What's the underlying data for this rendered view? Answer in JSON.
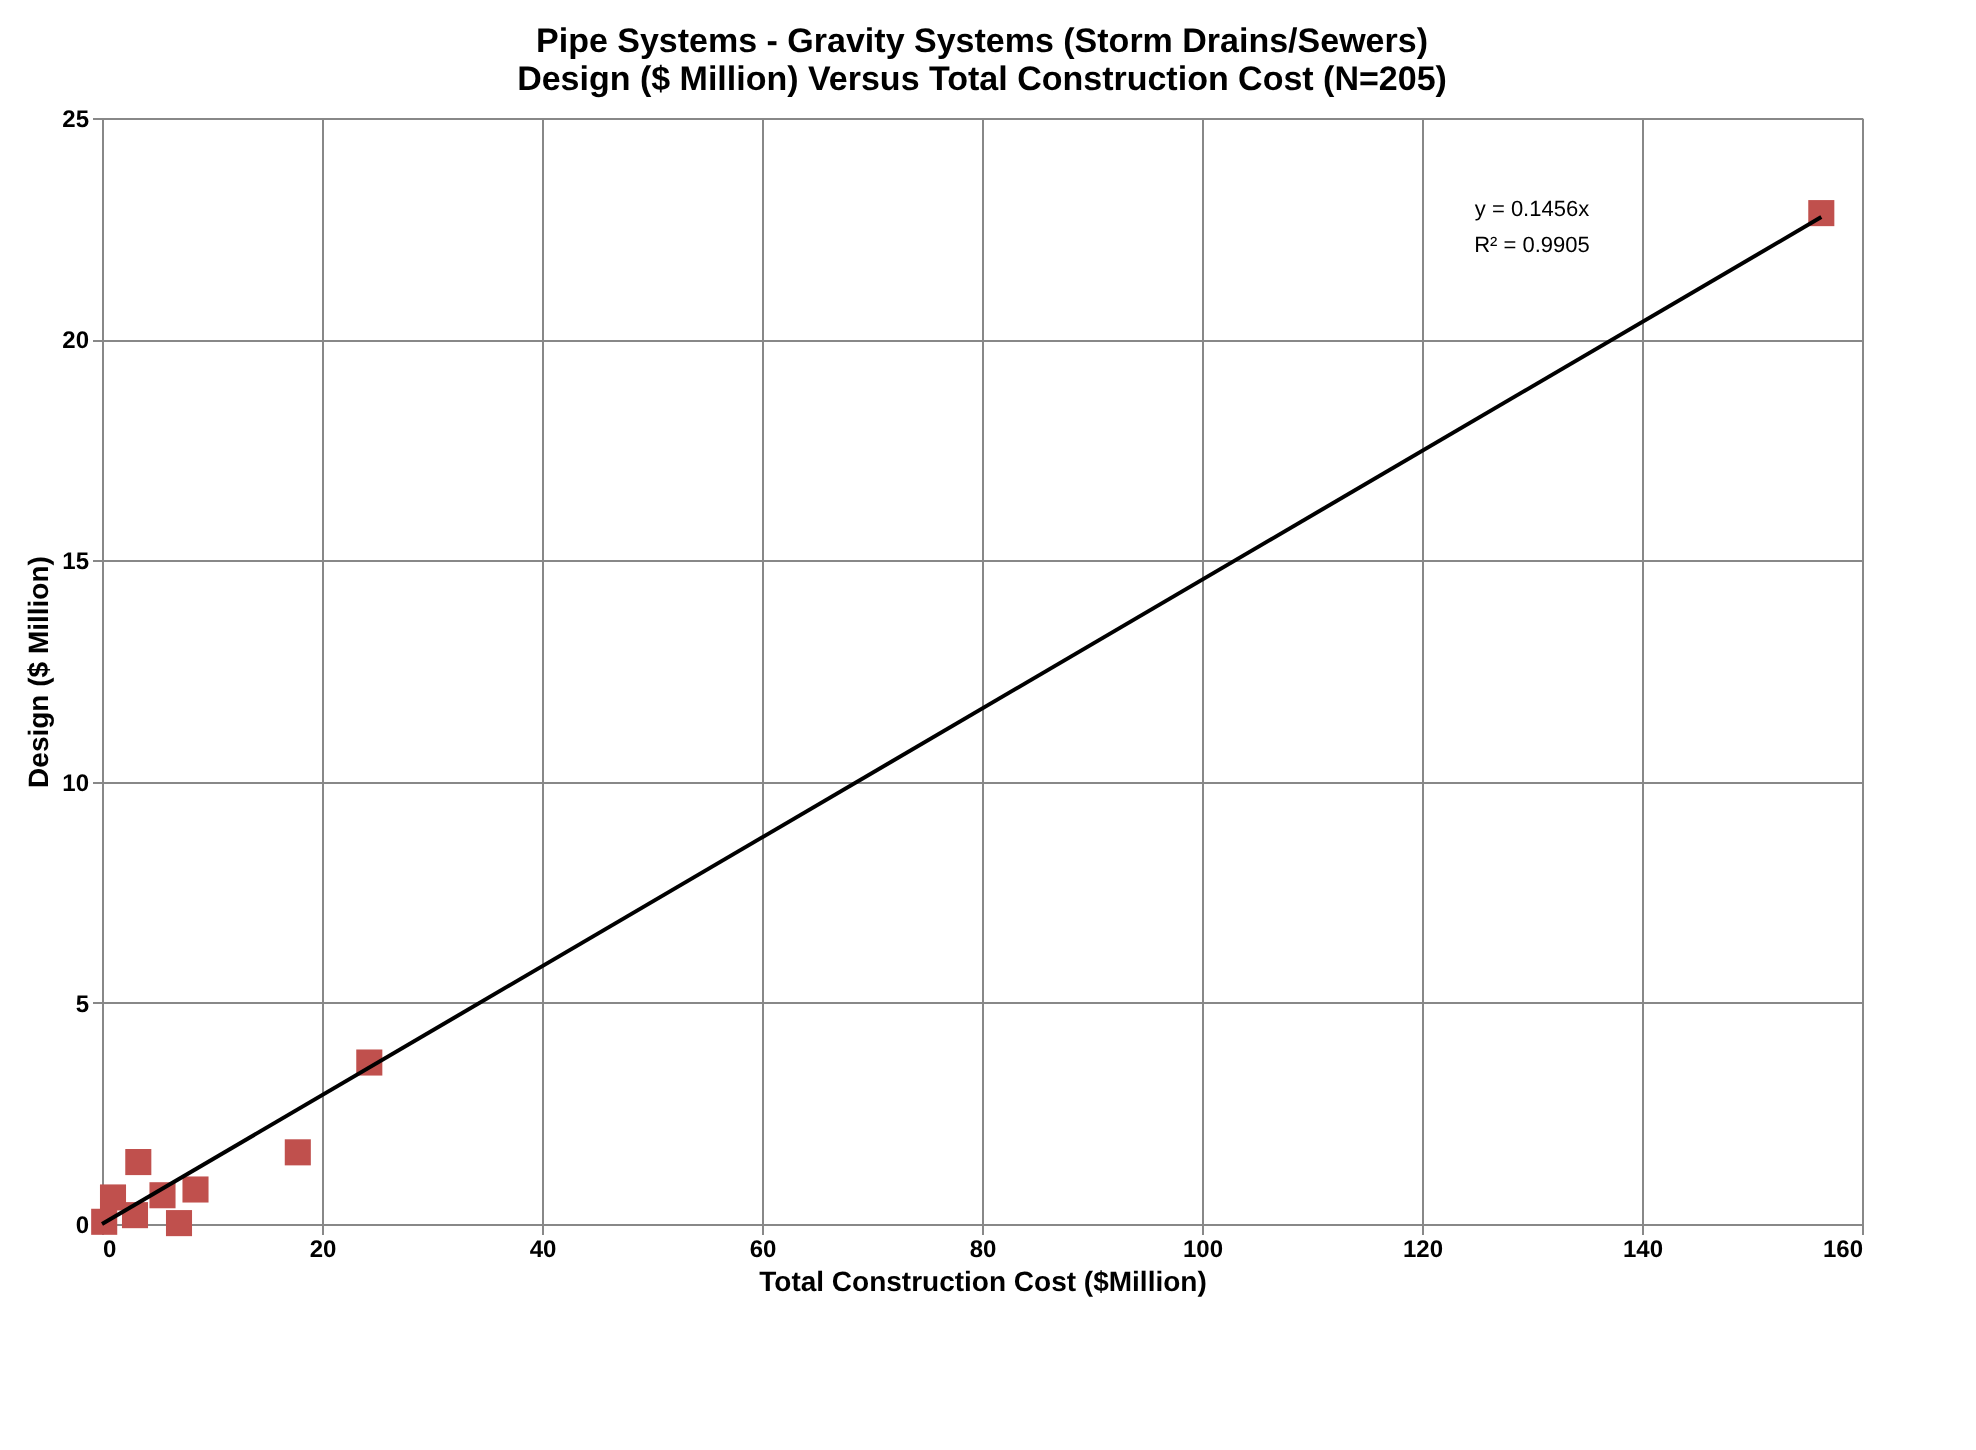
{
  "chart_data": {
    "type": "scatter",
    "title": [
      "Pipe Systems - Gravity Systems (Storm Drains/Sewers)",
      "Design  ($ Million) Versus Total Construction Cost  (N=205)"
    ],
    "xlabel": "Total Construction Cost ($Million)",
    "ylabel": "Design  ($ Million)",
    "xlim": [
      0,
      160
    ],
    "xticks": [
      0,
      20,
      40,
      60,
      80,
      100,
      120,
      140,
      160
    ],
    "ylim": [
      0,
      25
    ],
    "yticks": [
      0,
      5,
      10,
      15,
      20,
      25
    ],
    "grid": true,
    "annotations": [
      "y = 0.1456x",
      "R² = 0.9905"
    ],
    "series": [
      {
        "color": "#c0504d",
        "marker": "square",
        "x": [
          156.3,
          24.3,
          17.8,
          3.3,
          8.5,
          7.0,
          5.5,
          1.0,
          3.0,
          0.2
        ],
        "values": [
          22.85,
          3.65,
          1.62,
          1.4,
          0.78,
          0.02,
          0.65,
          0.6,
          0.2,
          0.05
        ]
      },
      {
        "type": "line",
        "color": "#000000",
        "x": [
          0,
          156.3
        ],
        "values": [
          0,
          22.76
        ]
      }
    ]
  }
}
